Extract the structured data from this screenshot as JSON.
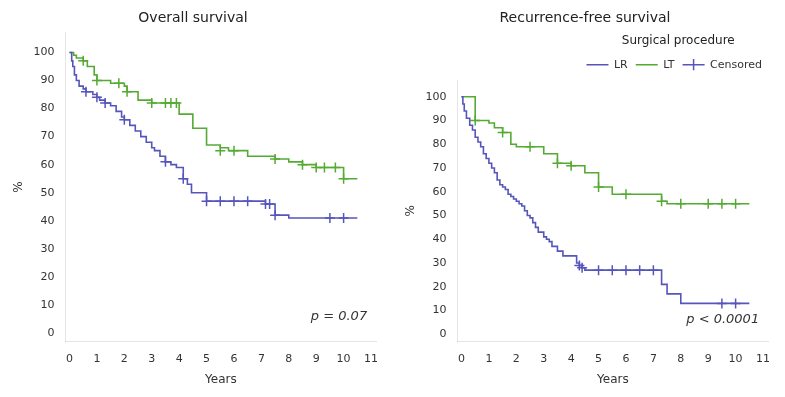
{
  "chart_data": [
    {
      "type": "line",
      "title": "Overall survival",
      "x_label": "Years",
      "y_label": "%",
      "annotation": "p = 0.07",
      "grid": false,
      "xlim": [
        -0.15,
        11.2
      ],
      "xticks": [
        0,
        1,
        2,
        3,
        4,
        5,
        6,
        7,
        8,
        9,
        10,
        11
      ],
      "ylim": [
        -3,
        107
      ],
      "yticks": [
        0,
        10,
        20,
        30,
        40,
        50,
        60,
        70,
        80,
        90,
        100
      ],
      "series": [
        {
          "type": "line",
          "line_style": "step",
          "color": "#5555bb",
          "x": [
            0,
            0.08,
            0.12,
            0.18,
            0.25,
            0.35,
            0.5,
            0.6,
            0.85,
            1.0,
            1.1,
            1.3,
            1.5,
            1.7,
            1.9,
            2.0,
            2.2,
            2.4,
            2.6,
            2.8,
            3.0,
            3.1,
            3.3,
            3.5,
            3.7,
            3.9,
            4.0,
            4.15,
            4.3,
            4.45,
            5.0,
            5.5,
            6.0,
            6.5,
            7.0,
            7.15,
            7.3,
            7.5,
            8.0,
            9.0,
            9.5,
            10.0,
            10.5
          ],
          "values": [
            100,
            97,
            95,
            92,
            90,
            88,
            87,
            86,
            85,
            84,
            83,
            82,
            81,
            79,
            77,
            76,
            74,
            72,
            70,
            68,
            66,
            65,
            63,
            61,
            60,
            59,
            59,
            55,
            53,
            50,
            47,
            47,
            47,
            47,
            47,
            46,
            46,
            42,
            41,
            41,
            41,
            41,
            41
          ]
        },
        {
          "type": "line",
          "line_style": "step",
          "color": "#55aa33",
          "x": [
            0,
            0.05,
            0.15,
            0.25,
            0.5,
            0.65,
            0.9,
            1.0,
            1.5,
            1.8,
            2.0,
            2.1,
            2.5,
            3.0,
            3.5,
            4.0,
            4.5,
            5.0,
            5.5,
            5.8,
            6.0,
            6.2,
            6.5,
            7.0,
            7.5,
            8.0,
            8.5,
            9.0,
            9.3,
            9.5,
            9.7,
            10.0,
            10.5
          ],
          "values": [
            100,
            100,
            99,
            98,
            97,
            95,
            92,
            90,
            89,
            89,
            88,
            86,
            83,
            82,
            82,
            78,
            73,
            67,
            66,
            65,
            65,
            65,
            63,
            63,
            62,
            61,
            60,
            59,
            59,
            59,
            59,
            55,
            55
          ]
        },
        {
          "type": "scatter",
          "marker": "+",
          "color": "#5555bb",
          "x": [
            0.6,
            1.0,
            1.3,
            2.0,
            3.5,
            4.15,
            5.0,
            5.5,
            6.0,
            6.5,
            7.15,
            7.3,
            7.5,
            9.5,
            10.0
          ],
          "values": [
            86,
            84,
            82,
            76,
            61,
            55,
            47,
            47,
            47,
            47,
            46,
            46,
            42,
            41,
            41
          ]
        },
        {
          "type": "scatter",
          "marker": "+",
          "color": "#55aa33",
          "x": [
            0.5,
            1.0,
            1.8,
            2.1,
            3.0,
            3.5,
            3.7,
            3.9,
            5.5,
            6.0,
            7.5,
            8.5,
            9.0,
            9.3,
            9.7,
            10.0
          ],
          "values": [
            97,
            90,
            89,
            86,
            82,
            82,
            82,
            82,
            65,
            65,
            62,
            60,
            59,
            59,
            59,
            55
          ]
        }
      ]
    },
    {
      "type": "line",
      "title": "Recurrence-free survival",
      "x_label": "Years",
      "y_label": "%",
      "annotation": "p < 0.0001",
      "grid": false,
      "legend": "upper right",
      "legend_title": "Surgical procedure",
      "xlim": [
        -0.15,
        11.2
      ],
      "xticks": [
        0,
        1,
        2,
        3,
        4,
        5,
        6,
        7,
        8,
        9,
        10,
        11
      ],
      "ylim": [
        -3,
        107
      ],
      "yticks": [
        0,
        10,
        20,
        30,
        40,
        50,
        60,
        70,
        80,
        90,
        100
      ],
      "series": [
        {
          "name": "LR",
          "type": "line",
          "line_style": "step",
          "color": "#5555bb",
          "x": [
            0,
            0.05,
            0.1,
            0.18,
            0.3,
            0.4,
            0.5,
            0.6,
            0.7,
            0.8,
            0.9,
            1.0,
            1.1,
            1.2,
            1.3,
            1.4,
            1.5,
            1.6,
            1.7,
            1.8,
            1.9,
            2.0,
            2.1,
            2.2,
            2.3,
            2.4,
            2.5,
            2.6,
            2.7,
            2.8,
            3.0,
            3.1,
            3.2,
            3.3,
            3.5,
            3.7,
            3.9,
            4.0,
            4.2,
            4.3,
            4.4,
            4.5,
            5.0,
            5.5,
            6.0,
            6.5,
            7.0,
            7.3,
            7.5,
            8.0,
            9.0,
            9.5,
            10.0,
            10.5
          ],
          "values": [
            100,
            97,
            94,
            91,
            88,
            86,
            83,
            81,
            79,
            76,
            74,
            72,
            70,
            68,
            65,
            63,
            62,
            61,
            59,
            58,
            57,
            56,
            55,
            54,
            52,
            50,
            49,
            47,
            45,
            43,
            41,
            40,
            39,
            37,
            35,
            33,
            33,
            33,
            30,
            29,
            28,
            27,
            27,
            27,
            27,
            27,
            27,
            21,
            17,
            13,
            13,
            13,
            13,
            13
          ]
        },
        {
          "name": "LT",
          "type": "line",
          "line_style": "step",
          "color": "#55aa33",
          "x": [
            0,
            0.05,
            0.15,
            0.5,
            0.8,
            1.0,
            1.2,
            1.5,
            1.8,
            2.0,
            2.2,
            2.5,
            3.0,
            3.5,
            4.0,
            4.5,
            5.0,
            5.5,
            6.0,
            6.5,
            7.0,
            7.3,
            7.5,
            8.0,
            9.0,
            9.5,
            10.0,
            10.5
          ],
          "values": [
            100,
            100,
            100,
            90,
            90,
            89,
            87,
            85,
            80,
            79,
            79,
            79,
            76,
            72,
            71,
            68,
            62,
            59,
            59,
            59,
            59,
            56,
            55,
            55,
            55,
            55,
            55,
            55
          ]
        },
        {
          "name": "Censored",
          "type": "scatter",
          "marker": "+",
          "color": "#5555bb",
          "x": [
            4.3,
            4.4,
            5.0,
            5.5,
            6.0,
            6.5,
            7.0,
            9.5,
            10.0
          ],
          "values": [
            29,
            28,
            27,
            27,
            27,
            27,
            27,
            13,
            13
          ]
        },
        {
          "type": "scatter",
          "marker": "+",
          "color": "#55aa33",
          "x": [
            0.5,
            1.5,
            2.5,
            3.5,
            4.0,
            5.0,
            6.0,
            7.3,
            8.0,
            9.0,
            9.5,
            10.0
          ],
          "values": [
            90,
            85,
            79,
            72,
            71,
            62,
            59,
            56,
            55,
            55,
            55,
            55
          ]
        }
      ]
    }
  ]
}
